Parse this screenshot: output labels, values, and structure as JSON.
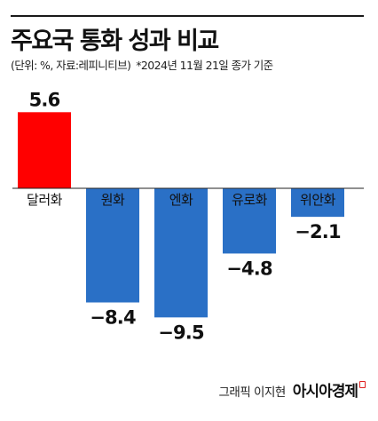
{
  "header": {
    "title": "주요국 통화 성과 비교",
    "unit_note": "(단위: %, 자료:레피니티브)",
    "date_note": "*2024년 11월 21일 종가 기준"
  },
  "footer": {
    "credit": "그래픽 이지현",
    "brand": "아시아경제"
  },
  "colors": {
    "positive": "#ff0000",
    "negative": "#2a70c6",
    "axis": "#222222"
  },
  "chart_data": {
    "type": "bar",
    "categories": [
      "달러화",
      "원화",
      "엔화",
      "유로화",
      "위안화"
    ],
    "values": [
      5.6,
      -8.4,
      -9.5,
      -4.8,
      -2.1
    ],
    "value_labels": [
      "5.6",
      "−8.4",
      "−9.5",
      "−4.8",
      "−2.1"
    ],
    "title": "주요국 통화 성과 비교",
    "xlabel": "",
    "ylabel": "",
    "grid": false,
    "legend": "none"
  }
}
